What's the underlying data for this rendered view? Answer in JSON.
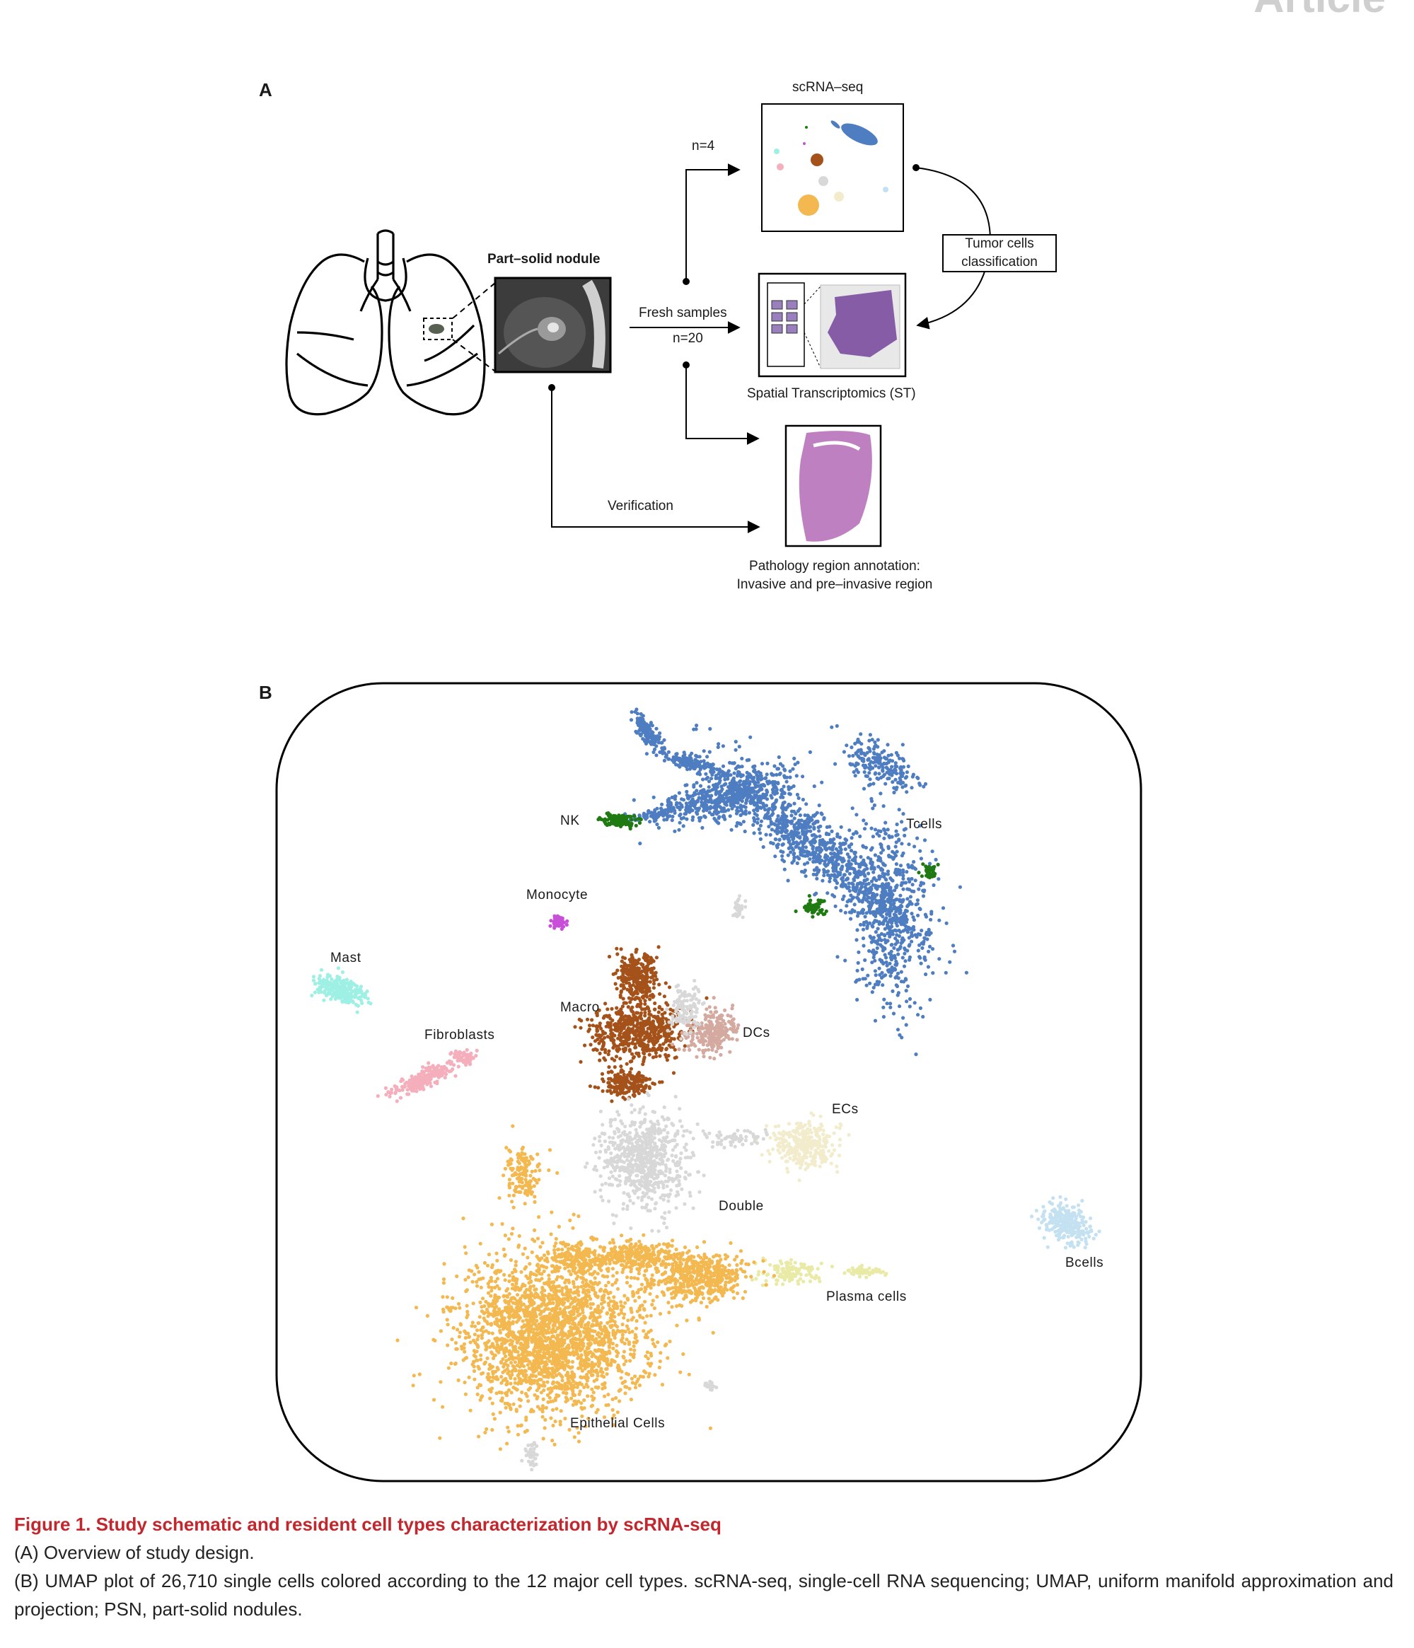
{
  "header": {
    "journal_section": "Article"
  },
  "panel_a": {
    "letter": "A",
    "part_solid_nodule": "Part–solid nodule",
    "scrna_seq": "scRNA–seq",
    "n4": "n=4",
    "fresh_samples": "Fresh samples",
    "n20": "n=20",
    "tumor_cells_line1": "Tumor cells",
    "tumor_cells_line2": "classification",
    "spatial": "Spatial Transcriptomics (ST)",
    "verification": "Verification",
    "pathology_line1": "Pathology region annotation:",
    "pathology_line2": "Invasive and pre–invasive region"
  },
  "panel_b": {
    "letter": "B",
    "chart_data": {
      "type": "scatter",
      "title": "",
      "xlabel": "",
      "ylabel": "",
      "grid": false,
      "series": [
        {
          "name": "Tcells",
          "color": "#4e7dc1"
        },
        {
          "name": "NK",
          "color": "#1f7a12"
        },
        {
          "name": "Monocyte",
          "color": "#c84fd8"
        },
        {
          "name": "Mast",
          "color": "#9ff0e4"
        },
        {
          "name": "Macro",
          "color": "#a5521a"
        },
        {
          "name": "DCs",
          "color": "#d4aaa0"
        },
        {
          "name": "Fibroblasts",
          "color": "#f5aebc"
        },
        {
          "name": "ECs",
          "color": "#f2eccc"
        },
        {
          "name": "Double",
          "color": "#d8d8d8"
        },
        {
          "name": "Bcells",
          "color": "#c3e1f1"
        },
        {
          "name": "Plasma cells",
          "color": "#e8eaa6"
        },
        {
          "name": "Epithelial Cells",
          "color": "#f3b84f"
        }
      ]
    }
  },
  "caption": {
    "title": "Figure 1.  Study schematic and resident cell types characterization by scRNA-seq",
    "line_a": "(A) Overview of study design.",
    "line_b": "(B) UMAP plot of 26,710 single cells colored according to the 12 major cell types. scRNA-seq, single-cell RNA sequencing; UMAP, uniform manifold approximation and projection; PSN, part-solid nodules."
  }
}
